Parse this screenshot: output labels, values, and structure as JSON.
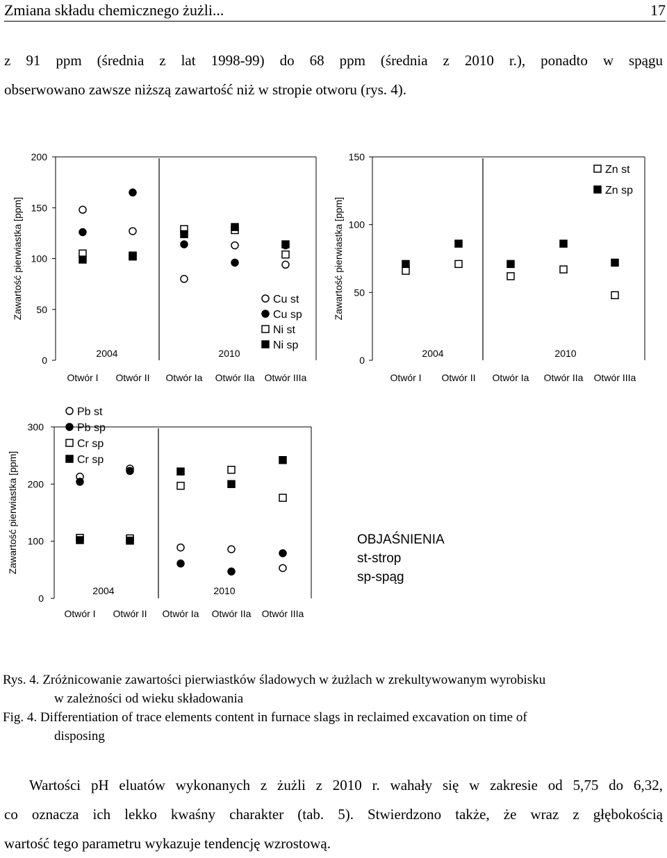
{
  "header": {
    "title": "Zmiana składu chemicznego żużli...",
    "page_number": "17"
  },
  "intro": {
    "line1": "z 91 ppm (średnia z lat 1998-99) do 68 ppm (średnia z 2010 r.), ponadto w spągu",
    "line2": "obserwowano zawsze niższą zawartość niż w stropie otworu (rys. 4)."
  },
  "colors": {
    "ink": "#000000",
    "background": "#ffffff"
  },
  "chart_data": [
    {
      "type": "scatter",
      "title": "",
      "ylabel": "Zawartość pierwiastka [ppm]",
      "ylim": [
        0,
        200
      ],
      "yticks": [
        "0",
        "50",
        "100",
        "150",
        "200"
      ],
      "categories": [
        "Otwór I",
        "Otwór II",
        "Otwór Ia",
        "Otwór IIa",
        "Otwór IIIa"
      ],
      "groups": [
        "2004",
        "2010"
      ],
      "series": [
        {
          "name": "Cu st",
          "marker": "circle-open",
          "values": [
            148,
            127,
            80,
            113,
            94
          ]
        },
        {
          "name": "Cu sp",
          "marker": "circle-filled",
          "values": [
            126,
            165,
            114,
            96,
            113
          ]
        },
        {
          "name": "Ni st",
          "marker": "square-open",
          "values": [
            105,
            103,
            129,
            128,
            104
          ]
        },
        {
          "name": "Ni sp",
          "marker": "square-filled",
          "values": [
            99,
            102,
            124,
            131,
            114
          ]
        }
      ],
      "legend_position": "inside-bottom-right"
    },
    {
      "type": "scatter",
      "title": "",
      "ylabel": "Zawartość pierwiastka [ppm]",
      "ylim": [
        0,
        150
      ],
      "yticks": [
        "0",
        "50",
        "100",
        "150"
      ],
      "categories": [
        "Otwór I",
        "Otwór II",
        "Otwór Ia",
        "Otwór IIa",
        "Otwór IIIa"
      ],
      "groups": [
        "2004",
        "2010"
      ],
      "series": [
        {
          "name": "Zn st",
          "marker": "square-open",
          "values": [
            66,
            71,
            62,
            67,
            48
          ]
        },
        {
          "name": "Zn sp",
          "marker": "square-filled",
          "values": [
            71,
            86,
            71,
            86,
            72
          ]
        }
      ],
      "legend_position": "top-right"
    },
    {
      "type": "scatter",
      "title": "",
      "ylabel": "Zawartość pierwiastka [ppm]",
      "ylim": [
        0,
        300
      ],
      "yticks": [
        "0",
        "100",
        "200",
        "300"
      ],
      "categories": [
        "Otwór I",
        "Otwór II",
        "Otwór Ia",
        "Otwór IIa",
        "Otwór IIIa"
      ],
      "groups": [
        "2004",
        "2010"
      ],
      "series": [
        {
          "name": "Pb st",
          "marker": "circle-open",
          "values": [
            213,
            227,
            89,
            86,
            53
          ]
        },
        {
          "name": "Pb sp",
          "marker": "circle-filled",
          "values": [
            204,
            223,
            61,
            47,
            79
          ]
        },
        {
          "name": "Cr sp",
          "marker": "square-open",
          "values": [
            106,
            105,
            197,
            225,
            176
          ]
        },
        {
          "name": "Cr sp",
          "marker": "square-filled",
          "values": [
            102,
            101,
            222,
            200,
            242
          ]
        }
      ],
      "legend_position": "top-left"
    }
  ],
  "explanation": {
    "title": "OBJAŚNIENIA",
    "line1": "st-strop",
    "line2": "sp-spąg"
  },
  "caption_pl": {
    "label": "Rys. 4.",
    "line1": "Zróżnicowanie zawartości pierwiastków śladowych w żużlach w zrekultywowanym wyrobisku",
    "line2": "w zależności od wieku składowania"
  },
  "caption_en": {
    "label": "Fig. 4.",
    "line1": "Differentiation of trace elements content in furnace slags in reclaimed excavation on time of",
    "line2": "disposing"
  },
  "body": {
    "line1": "Wartości pH eluatów wykonanych z żużli z 2010 r. wahały się w zakresie od 5,75 do 6,32,",
    "line2": "co oznacza ich lekko kwaśny charakter (tab. 5). Stwierdzono także, że wraz z głębokością",
    "line3": "wartość tego parametru wykazuje tendencję wzrostową."
  }
}
